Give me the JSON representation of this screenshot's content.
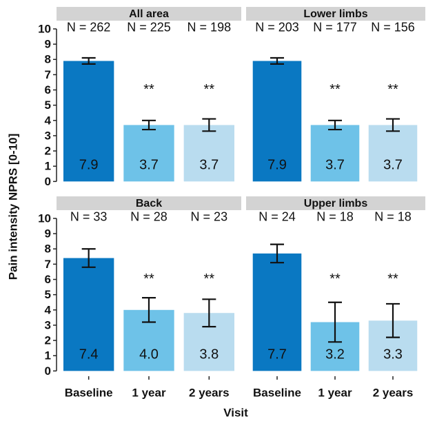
{
  "ylabel": "Pain intensity NPRS [0-10]",
  "xlabel": "Visit",
  "categories": [
    "Baseline",
    "1 year",
    "2 years"
  ],
  "colors": [
    "#0a78c2",
    "#6ec2e8",
    "#b9dcef"
  ],
  "ylim": [
    -0.3,
    10.45
  ],
  "yticks": [
    0,
    1,
    2,
    3,
    4,
    5,
    6,
    7,
    8,
    9,
    10
  ],
  "chart_data": [
    {
      "type": "bar",
      "title": "All area",
      "values": [
        7.9,
        3.7,
        3.7
      ],
      "value_labels": [
        "7.9",
        "3.7",
        "3.7"
      ],
      "errors": [
        0.2,
        0.3,
        0.4
      ],
      "n_labels": [
        "N = 262",
        "N = 225",
        "N = 198"
      ],
      "significance": [
        null,
        "**",
        "**"
      ]
    },
    {
      "type": "bar",
      "title": "Lower limbs",
      "values": [
        7.9,
        3.7,
        3.7
      ],
      "value_labels": [
        "7.9",
        "3.7",
        "3.7"
      ],
      "errors": [
        0.2,
        0.3,
        0.4
      ],
      "n_labels": [
        "N = 203",
        "N = 177",
        "N = 156"
      ],
      "significance": [
        null,
        "**",
        "**"
      ]
    },
    {
      "type": "bar",
      "title": "Back",
      "values": [
        7.4,
        4.0,
        3.8
      ],
      "value_labels": [
        "7.4",
        "4.0",
        "3.8"
      ],
      "errors": [
        0.6,
        0.8,
        0.9
      ],
      "n_labels": [
        "N = 33",
        "N = 28",
        "N = 23"
      ],
      "significance": [
        null,
        "**",
        "**"
      ]
    },
    {
      "type": "bar",
      "title": "Upper limbs",
      "values": [
        7.7,
        3.2,
        3.3
      ],
      "value_labels": [
        "7.7",
        "3.2",
        "3.3"
      ],
      "errors": [
        0.6,
        1.3,
        1.1
      ],
      "n_labels": [
        "N = 24",
        "N = 18",
        "N = 18"
      ],
      "significance": [
        null,
        "**",
        "**"
      ]
    }
  ]
}
